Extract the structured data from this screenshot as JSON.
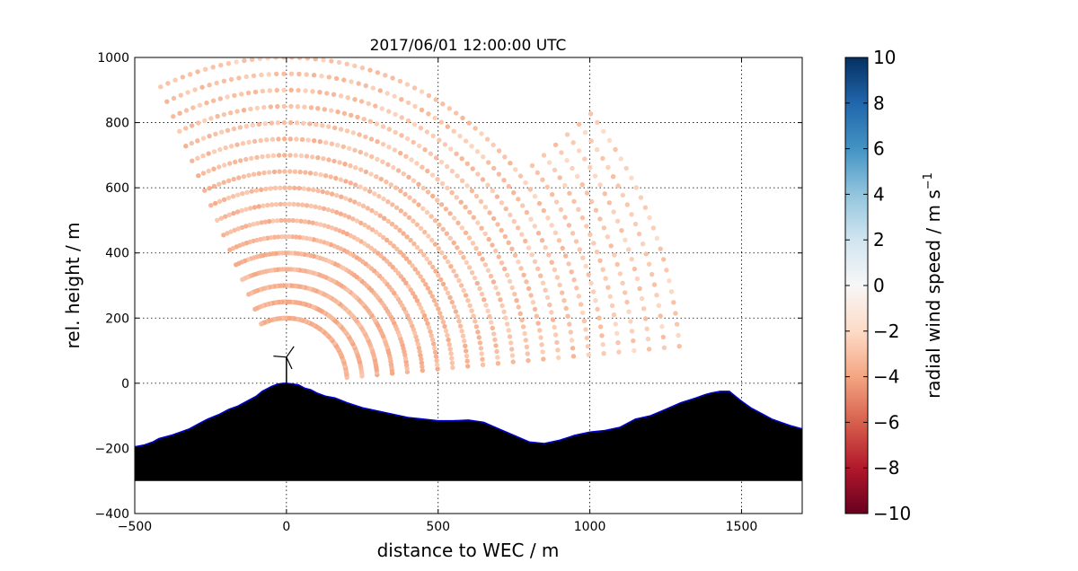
{
  "chart_data": {
    "type": "scatter",
    "title": "2017/06/01 12:00:00 UTC",
    "xlabel": "distance to WEC / m",
    "ylabel": "rel. height / m",
    "xlim": [
      -500,
      1700
    ],
    "ylim": [
      -400,
      1000
    ],
    "xticks": [
      "−500",
      "0",
      "500",
      "1000",
      "1500"
    ],
    "yticks": [
      "−400",
      "−200",
      "0",
      "200",
      "400",
      "600",
      "800",
      "1000"
    ],
    "grid": true,
    "colorbar": {
      "label": "radial wind speed / m s",
      "label_exponent": "−1",
      "range": [
        -10,
        10
      ],
      "colormap": "RdBu",
      "ticks": [
        "−10",
        "−8",
        "−6",
        "−4",
        "−2",
        "0",
        "2",
        "4",
        "6",
        "8",
        "10"
      ]
    },
    "scan": {
      "origin": [
        0,
        0
      ],
      "ranges": [
        200,
        1300
      ],
      "range_step": 50,
      "elevation_deg": [
        5,
        115
      ],
      "typical_speed": [
        -5,
        -2
      ]
    },
    "terrain": {
      "fill_color": "#000000",
      "outline_color": "#0000cc",
      "base": -300,
      "x": [
        -500,
        -470,
        -440,
        -420,
        -380,
        -350,
        -320,
        -290,
        -260,
        -220,
        -190,
        -160,
        -130,
        -100,
        -80,
        -50,
        -30,
        -10,
        0,
        20,
        40,
        60,
        80,
        100,
        130,
        160,
        200,
        250,
        300,
        350,
        400,
        450,
        500,
        550,
        600,
        650,
        700,
        750,
        800,
        850,
        900,
        950,
        1000,
        1050,
        1100,
        1150,
        1200,
        1250,
        1300,
        1350,
        1380,
        1400,
        1430,
        1460,
        1480,
        1500,
        1530,
        1560,
        1600,
        1630,
        1660,
        1700
      ],
      "y": [
        -195,
        -190,
        -180,
        -170,
        -160,
        -150,
        -140,
        -125,
        -110,
        -95,
        -80,
        -70,
        -55,
        -40,
        -25,
        -10,
        -3,
        0,
        0,
        -2,
        -5,
        -15,
        -20,
        -30,
        -40,
        -45,
        -60,
        -75,
        -85,
        -95,
        -105,
        -110,
        -115,
        -115,
        -113,
        -120,
        -140,
        -160,
        -180,
        -185,
        -175,
        -160,
        -150,
        -145,
        -135,
        -110,
        -100,
        -80,
        -60,
        -45,
        -35,
        -30,
        -25,
        -25,
        -40,
        -55,
        -75,
        -90,
        -110,
        -120,
        -130,
        -140
      ]
    },
    "turbine": {
      "x": 0,
      "tower_base": 0,
      "hub_height": 80,
      "rotor_radius": 40
    }
  }
}
